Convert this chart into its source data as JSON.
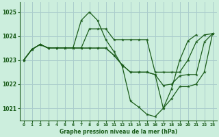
{
  "title": "Graphe pression niveau de la mer (hPa)",
  "background_color": "#cceedd",
  "grid_color": "#aacccc",
  "line_color": "#1a5c1a",
  "xlim": [
    -0.5,
    23.5
  ],
  "ylim": [
    1020.5,
    1025.4
  ],
  "yticks": [
    1021,
    1022,
    1023,
    1024,
    1025
  ],
  "xticks": [
    0,
    1,
    2,
    3,
    4,
    5,
    6,
    7,
    8,
    9,
    10,
    11,
    12,
    13,
    14,
    15,
    16,
    17,
    18,
    19,
    20,
    21,
    22,
    23
  ],
  "lines_x": [
    [
      0,
      1,
      2,
      3,
      4,
      5,
      6,
      7,
      8,
      9,
      10,
      11,
      12,
      13,
      14,
      15,
      16,
      17,
      18,
      19,
      20,
      21
    ],
    [
      0,
      1,
      2,
      3,
      4,
      5,
      6,
      7,
      8,
      9,
      10,
      11,
      12,
      13,
      14,
      15,
      16,
      17,
      18,
      19,
      20,
      21,
      22,
      23
    ],
    [
      0,
      1,
      2,
      3,
      4,
      5,
      6,
      7,
      8,
      9,
      10,
      11,
      12,
      13,
      14,
      15,
      16,
      17,
      18,
      19,
      20,
      21,
      22,
      23
    ],
    [
      0,
      1,
      2,
      3,
      4,
      5,
      6,
      7,
      8,
      9,
      10,
      11,
      12,
      13,
      14,
      15,
      16,
      17,
      18,
      19,
      20,
      21,
      22,
      23
    ]
  ],
  "lines_y": [
    [
      1023.0,
      1023.45,
      1023.65,
      1023.5,
      1023.5,
      1023.5,
      1023.5,
      1024.65,
      1025.0,
      1024.65,
      1023.85,
      1023.35,
      1022.75,
      1021.3,
      1021.05,
      1020.75,
      1020.65,
      1021.0,
      1021.8,
      1023.0,
      1023.8,
      1024.05
    ],
    [
      1023.0,
      1023.45,
      1023.65,
      1023.5,
      1023.5,
      1023.5,
      1023.5,
      1023.5,
      1024.3,
      1024.3,
      1024.3,
      1023.85,
      1023.85,
      1023.85,
      1023.85,
      1023.85,
      1022.5,
      1022.5,
      1022.5,
      1022.5,
      1023.0,
      1023.75,
      1024.05,
      1024.1
    ],
    [
      1023.0,
      1023.45,
      1023.65,
      1023.5,
      1023.5,
      1023.5,
      1023.5,
      1023.5,
      1023.5,
      1023.5,
      1023.5,
      1023.2,
      1022.8,
      1022.5,
      1022.5,
      1022.5,
      1022.4,
      1021.95,
      1022.0,
      1022.35,
      1022.4,
      1022.4,
      1023.75,
      1024.1
    ],
    [
      1023.0,
      1023.45,
      1023.65,
      1023.5,
      1023.5,
      1023.5,
      1023.5,
      1023.5,
      1023.5,
      1023.5,
      1023.5,
      1023.2,
      1022.8,
      1022.5,
      1022.5,
      1022.5,
      1022.4,
      1021.0,
      1021.4,
      1021.9,
      1021.9,
      1022.0,
      1022.5,
      1024.1
    ]
  ]
}
